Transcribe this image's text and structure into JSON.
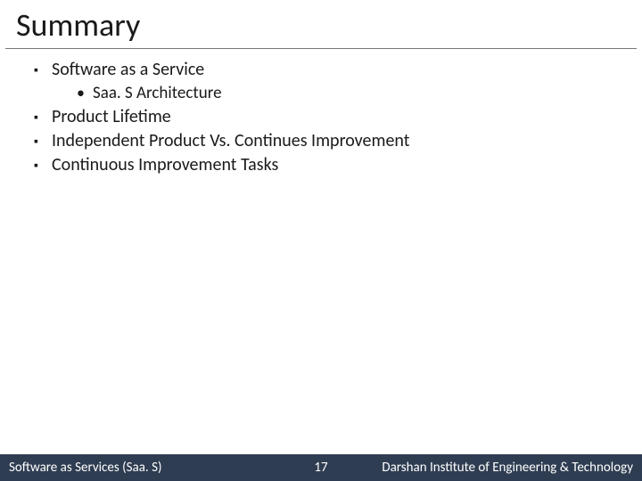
{
  "title": "Summary",
  "bullets": {
    "items": [
      {
        "text": "Software as a Service",
        "children": [
          {
            "text": "Saa. S Architecture"
          }
        ]
      },
      {
        "text": "Product Lifetime"
      },
      {
        "text": "Independent Product Vs. Continues Improvement"
      },
      {
        "text": "Continuous Improvement Tasks"
      }
    ]
  },
  "footer": {
    "left": "Software as Services (Saa. S)",
    "page": "17",
    "right": "Darshan Institute of Engineering & Technology"
  },
  "colors": {
    "footer_bg": "#2f3d52",
    "footer_text": "#ffffff",
    "title_rule": "#777777",
    "text": "#1a1a1a",
    "background": "#ffffff"
  },
  "typography": {
    "title_fontsize": 36,
    "body_fontsize": 20,
    "sub_fontsize": 19,
    "footer_fontsize": 15,
    "font_family": "Calibri"
  }
}
